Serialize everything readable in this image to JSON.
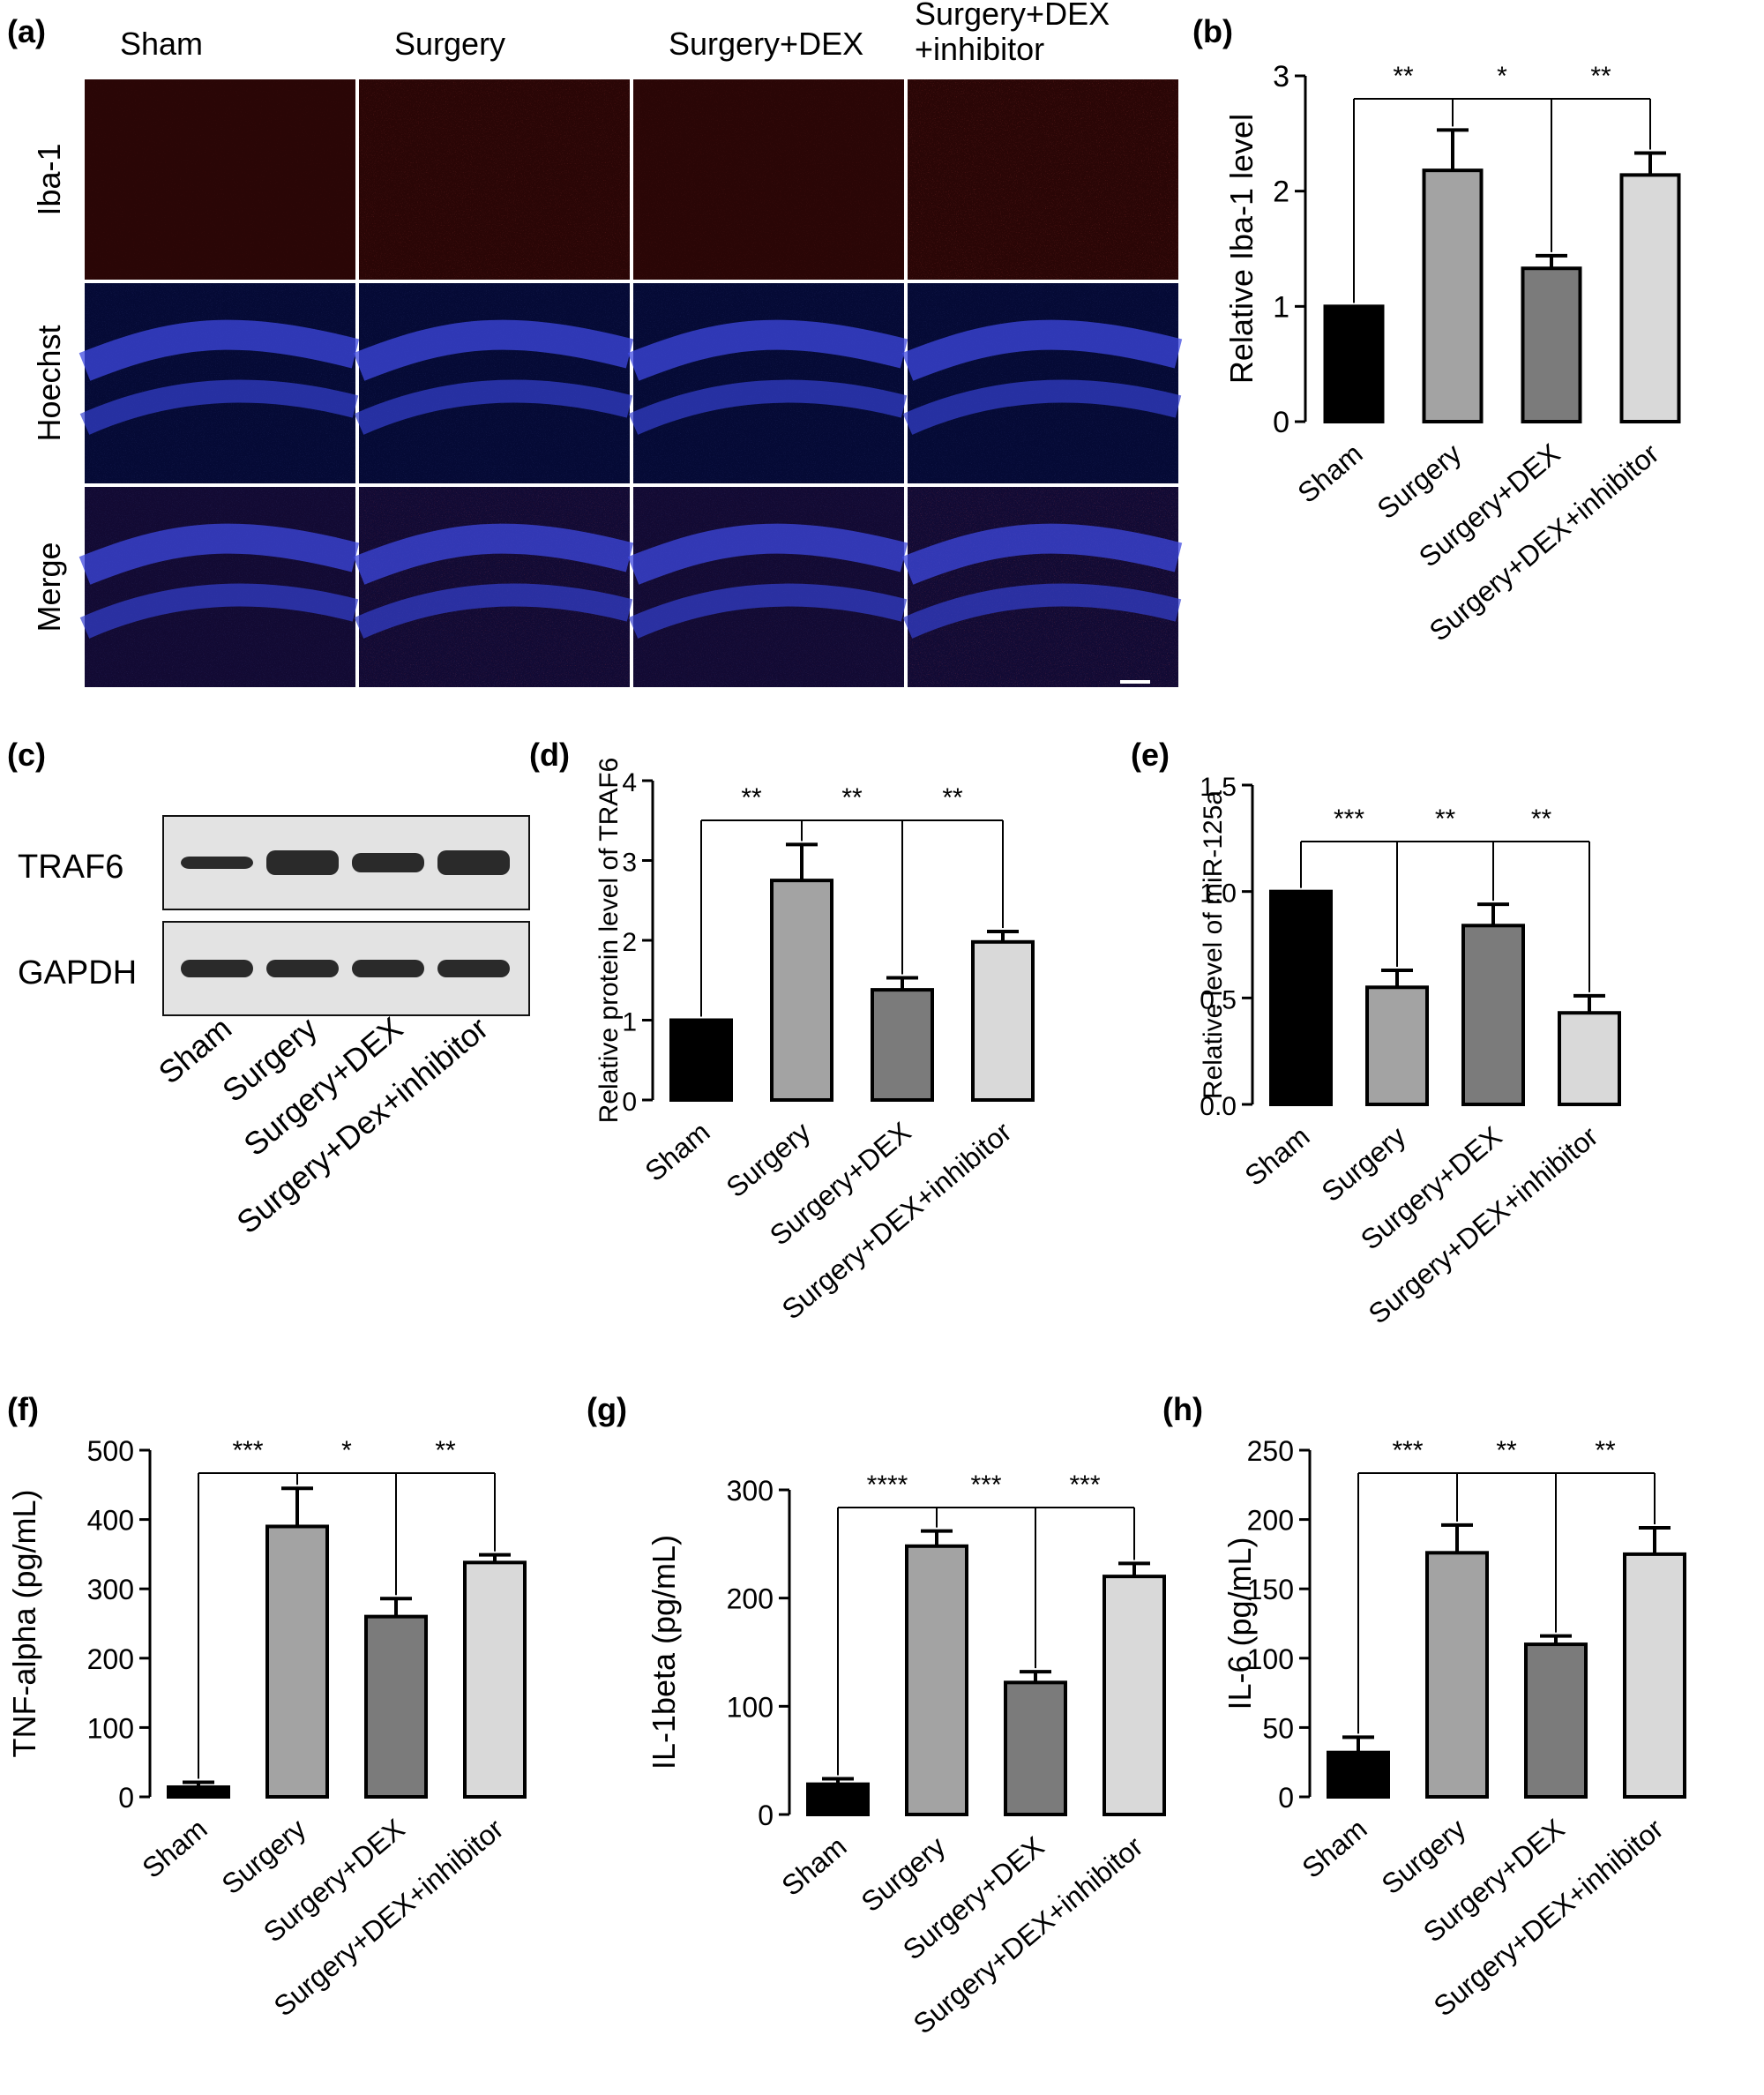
{
  "figure": {
    "panel_labels": [
      "(a)",
      "(b)",
      "(c)",
      "(d)",
      "(e)",
      "(f)",
      "(g)",
      "(h)"
    ]
  },
  "micrograph": {
    "columns": [
      "Sham",
      "Surgery",
      "Surgery+DEX",
      "Surgery+DEX\n+inhibitor"
    ],
    "rows": [
      "Iba-1",
      "Hoechst",
      "Merge"
    ]
  },
  "western_blot": {
    "bands": [
      "TRAF6",
      "GAPDH"
    ],
    "lanes": [
      "Sham",
      "Surgery",
      "Surgery+DEX",
      "Surgery+Dex+inhibitor"
    ]
  },
  "colors": {
    "sham": "#000000",
    "surgery": "#a3a3a3",
    "surgery_dex": "#7b7b7b",
    "surgery_dex_inhibitor": "#d9d9d9",
    "red_stain": "#a3241f",
    "blue_stain": "#2f3cc4"
  },
  "chart_data": [
    {
      "panel": "(b)",
      "type": "bar",
      "categories": [
        "Sham",
        "Surgery",
        "Surgery+DEX",
        "Surgery+DEX+inhibitor"
      ],
      "values": [
        1.0,
        2.18,
        1.33,
        2.14
      ],
      "errors": [
        0,
        0.35,
        0.11,
        0.19
      ],
      "ylabel": "Relative Iba-1 level",
      "ylim": [
        0,
        3
      ],
      "yticks": [
        "0",
        "1",
        "2",
        "3"
      ],
      "significance": [
        "**",
        "*",
        "**"
      ]
    },
    {
      "panel": "(d)",
      "type": "bar",
      "categories": [
        "Sham",
        "Surgery",
        "Surgery+DEX",
        "Surgery+DEX+inhibitor"
      ],
      "values": [
        1.0,
        2.75,
        1.38,
        1.98
      ],
      "errors": [
        0,
        0.45,
        0.15,
        0.13
      ],
      "ylabel": "Relative protein level of TRAF6",
      "ylim": [
        0,
        4
      ],
      "yticks": [
        "0",
        "1",
        "2",
        "3",
        "4"
      ],
      "significance": [
        "**",
        "**",
        "**"
      ]
    },
    {
      "panel": "(e)",
      "type": "bar",
      "categories": [
        "Sham",
        "Surgery",
        "Surgery+DEX",
        "Surgery+DEX+inhibitor"
      ],
      "values": [
        1.0,
        0.55,
        0.84,
        0.43
      ],
      "errors": [
        0,
        0.08,
        0.1,
        0.08
      ],
      "ylabel": "Relative level of miR-125a",
      "ylim": [
        0,
        1.5
      ],
      "yticks": [
        "0.0",
        "0.5",
        "1.0",
        "1.5"
      ],
      "significance": [
        "***",
        "**",
        "**"
      ]
    },
    {
      "panel": "(f)",
      "type": "bar",
      "categories": [
        "Sham",
        "Surgery",
        "Surgery+DEX",
        "Surgery+DEX+inhibitor"
      ],
      "values": [
        14,
        390,
        260,
        338
      ],
      "errors": [
        7,
        55,
        26,
        11
      ],
      "ylabel": "TNF-alpha (pg/mL)",
      "ylim": [
        0,
        500
      ],
      "yticks": [
        "0",
        "100",
        "200",
        "300",
        "400",
        "500"
      ],
      "significance": [
        "***",
        "*",
        "**"
      ]
    },
    {
      "panel": "(g)",
      "type": "bar",
      "categories": [
        "Sham",
        "Surgery",
        "Surgery+DEX",
        "Surgery+DEX+inhibitor"
      ],
      "values": [
        28,
        248,
        122,
        220
      ],
      "errors": [
        5,
        14,
        10,
        12
      ],
      "ylabel": "IL-1beta (pg/mL)",
      "ylim": [
        0,
        300
      ],
      "yticks": [
        "0",
        "100",
        "200",
        "300"
      ],
      "significance": [
        "****",
        "***",
        "***"
      ]
    },
    {
      "panel": "(h)",
      "type": "bar",
      "categories": [
        "Sham",
        "Surgery",
        "Surgery+DEX",
        "Surgery+DEX+inhibitor"
      ],
      "values": [
        32,
        176,
        110,
        175
      ],
      "errors": [
        11,
        20,
        6,
        19
      ],
      "ylabel": "IL-6 (pg/mL)",
      "ylim": [
        0,
        250
      ],
      "yticks": [
        "0",
        "50",
        "100",
        "150",
        "200",
        "250"
      ],
      "significance": [
        "***",
        "**",
        "**"
      ]
    }
  ]
}
